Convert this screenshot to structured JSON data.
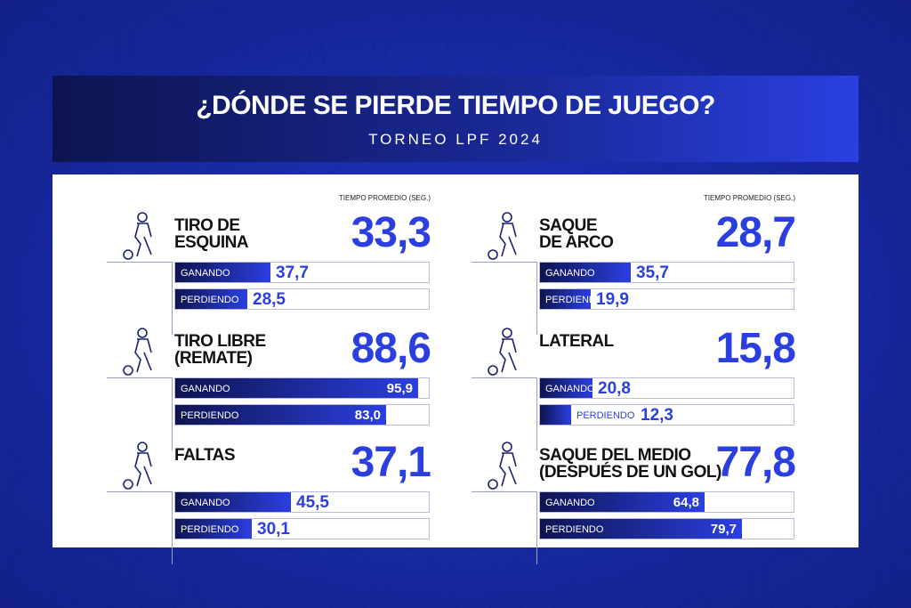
{
  "header": {
    "title": "¿DÓNDE SE PIERDE TIEMPO DE JUEGO?",
    "subtitle": "TORNEO LPF 2024"
  },
  "chart_data": {
    "type": "bar",
    "title": "¿DÓNDE SE PIERDE TIEMPO DE JUEGO?",
    "subtitle": "TORNEO LPF 2024",
    "unit_label": "TIEMPO PROMEDIO (SEG.)",
    "series_names": [
      "GANANDO",
      "PERDIENDO"
    ],
    "xlim": [
      0,
      100
    ],
    "categories": [
      {
        "name": "TIRO DE ESQUINA",
        "icon": "corner-kick-icon",
        "average": "33,3",
        "ganando": 37.7,
        "ganando_label": "37,7",
        "perdiendo": 28.5,
        "perdiendo_label": "28,5",
        "show_unit": true
      },
      {
        "name": "SAQUE DE ARCO",
        "icon": "goal-kick-icon",
        "average": "28,7",
        "ganando": 35.7,
        "ganando_label": "35,7",
        "perdiendo": 19.9,
        "perdiendo_label": "19,9",
        "show_unit": true
      },
      {
        "name": "TIRO LIBRE (REMATE)",
        "icon": "free-kick-icon",
        "average": "88,6",
        "ganando": 95.9,
        "ganando_label": "95,9",
        "perdiendo": 83.0,
        "perdiendo_label": "83,0"
      },
      {
        "name": "LATERAL",
        "icon": "throw-in-icon",
        "average": "15,8",
        "ganando": 20.8,
        "ganando_label": "20,8",
        "perdiendo": 12.3,
        "perdiendo_label": "12,3"
      },
      {
        "name": "FALTAS",
        "icon": "foul-icon",
        "average": "37,1",
        "ganando": 45.5,
        "ganando_label": "45,5",
        "perdiendo": 30.1,
        "perdiendo_label": "30,1"
      },
      {
        "name": "SAQUE DEL MEDIO (DESPUÉS DE UN GOL)",
        "name_lines": [
          "SAQUE DEL MEDIO",
          "(DESPUÉS DE UN GOL)"
        ],
        "icon": "kickoff-icon",
        "average": "77,8",
        "ganando": 64.8,
        "ganando_label": "64,8",
        "perdiendo": 79.7,
        "perdiendo_label": "79,7"
      }
    ]
  },
  "colors": {
    "accent": "#2b3fe0",
    "navy": "#0e1450",
    "background": "#1c2fb3"
  }
}
